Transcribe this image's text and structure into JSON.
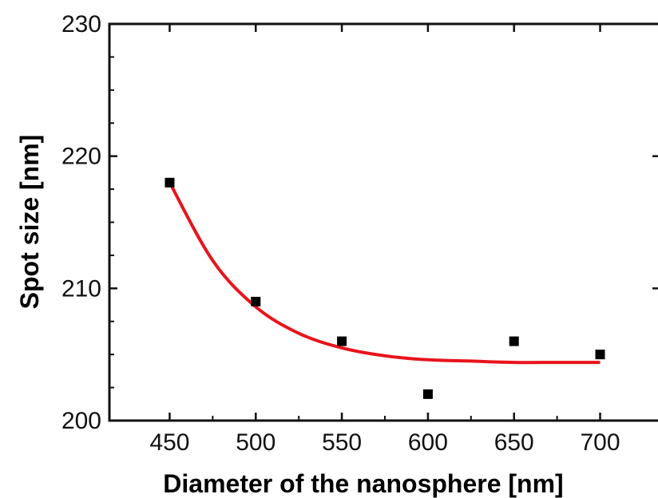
{
  "chart_data": {
    "type": "scatter",
    "title": "",
    "xlabel": "Diameter of the nanosphere [nm]",
    "ylabel": "Spot size [nm]",
    "xlim": [
      415,
      735
    ],
    "ylim": [
      200,
      230
    ],
    "xticks": [
      450,
      500,
      550,
      600,
      650,
      700
    ],
    "yticks": [
      200,
      210,
      220,
      230
    ],
    "grid": false,
    "legend": "none",
    "series": [
      {
        "type": "scatter",
        "marker": "square",
        "color": "#000000",
        "x": [
          450,
          500,
          550,
          600,
          650,
          700
        ],
        "y": [
          218,
          209,
          206,
          202,
          206,
          205
        ]
      },
      {
        "type": "line",
        "color": "#e8141c",
        "x": [
          450,
          475,
          500,
          525,
          550,
          575,
          600,
          625,
          650,
          675,
          700
        ],
        "y": [
          218.0,
          212.1,
          208.6,
          206.6,
          205.5,
          204.9,
          204.6,
          204.5,
          204.4,
          204.4,
          204.4
        ]
      }
    ]
  }
}
